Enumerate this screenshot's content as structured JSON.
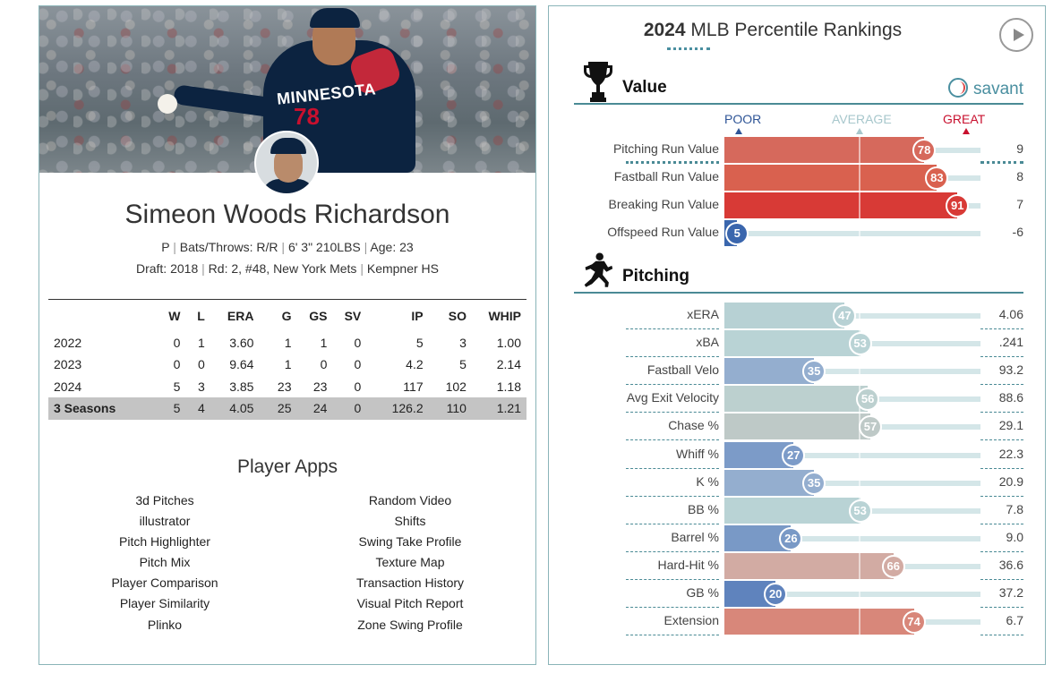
{
  "player": {
    "name": "Simeon Woods Richardson",
    "jersey_text": "MINNESOTA",
    "jersey_number": "78",
    "position": "P",
    "bats_throws_label": "Bats/Throws:",
    "bats_throws": "R/R",
    "height_weight": "6' 3\" 210LBS",
    "age_label": "Age:",
    "age": "23",
    "draft_label": "Draft:",
    "draft_year": "2018",
    "draft_round": "Rd: 2, #48,",
    "draft_team": "New York Mets",
    "school": "Kempner HS"
  },
  "stats": {
    "headers": [
      "",
      "W",
      "L",
      "ERA",
      "G",
      "GS",
      "SV",
      "IP",
      "SO",
      "WHIP"
    ],
    "rows": [
      [
        "2022",
        "0",
        "1",
        "3.60",
        "1",
        "1",
        "0",
        "5",
        "3",
        "1.00"
      ],
      [
        "2023",
        "0",
        "0",
        "9.64",
        "1",
        "0",
        "0",
        "4.2",
        "5",
        "2.14"
      ],
      [
        "2024",
        "5",
        "3",
        "3.85",
        "23",
        "23",
        "0",
        "117",
        "102",
        "1.18"
      ]
    ],
    "total": [
      "3 Seasons",
      "5",
      "4",
      "4.05",
      "25",
      "24",
      "0",
      "126.2",
      "110",
      "1.21"
    ]
  },
  "apps": {
    "title": "Player Apps",
    "left": [
      "3d Pitches",
      "illustrator",
      "Pitch Highlighter",
      "Pitch Mix",
      "Player Comparison",
      "Player Similarity",
      "Plinko"
    ],
    "right": [
      "Random Video",
      "Shifts",
      "Swing Take Profile",
      "Texture Map",
      "Transaction History",
      "Visual Pitch Report",
      "Zone Swing Profile"
    ]
  },
  "rankings": {
    "year": "2024",
    "title": "MLB Percentile Rankings",
    "savant_label": "savant",
    "scale": {
      "poor": "POOR",
      "average": "AVERAGE",
      "great": "GREAT"
    },
    "value_section": {
      "title": "Value",
      "metrics": [
        {
          "name": "Pitching Run Value",
          "percentile": 78,
          "value": "9",
          "color": "#d6695c"
        },
        {
          "name": "Fastball Run Value",
          "percentile": 83,
          "value": "8",
          "color": "#d9614f"
        },
        {
          "name": "Breaking Run Value",
          "percentile": 91,
          "value": "7",
          "color": "#d83a36"
        },
        {
          "name": "Offspeed Run Value",
          "percentile": 5,
          "value": "-6",
          "color": "#3a66ad"
        }
      ]
    },
    "pitching_section": {
      "title": "Pitching",
      "metrics": [
        {
          "name": "xERA",
          "percentile": 47,
          "value": "4.06",
          "color": "#b7d1d4"
        },
        {
          "name": "xBA",
          "percentile": 53,
          "value": ".241",
          "color": "#b9d3d5"
        },
        {
          "name": "Fastball Velo",
          "percentile": 35,
          "value": "93.2",
          "color": "#94aecf"
        },
        {
          "name": "Avg Exit Velocity",
          "percentile": 56,
          "value": "88.6",
          "color": "#bcd0cf"
        },
        {
          "name": "Chase %",
          "percentile": 57,
          "value": "29.1",
          "color": "#bec9c7"
        },
        {
          "name": "Whiff %",
          "percentile": 27,
          "value": "22.3",
          "color": "#7c9bc8"
        },
        {
          "name": "K %",
          "percentile": 35,
          "value": "20.9",
          "color": "#94aecf"
        },
        {
          "name": "BB %",
          "percentile": 53,
          "value": "7.8",
          "color": "#b9d3d5"
        },
        {
          "name": "Barrel %",
          "percentile": 26,
          "value": "9.0",
          "color": "#7999c6"
        },
        {
          "name": "Hard-Hit %",
          "percentile": 66,
          "value": "36.6",
          "color": "#d2aba3"
        },
        {
          "name": "GB %",
          "percentile": 20,
          "value": "37.2",
          "color": "#5f83bd"
        },
        {
          "name": "Extension",
          "percentile": 74,
          "value": "6.7",
          "color": "#d8877a"
        }
      ]
    }
  }
}
